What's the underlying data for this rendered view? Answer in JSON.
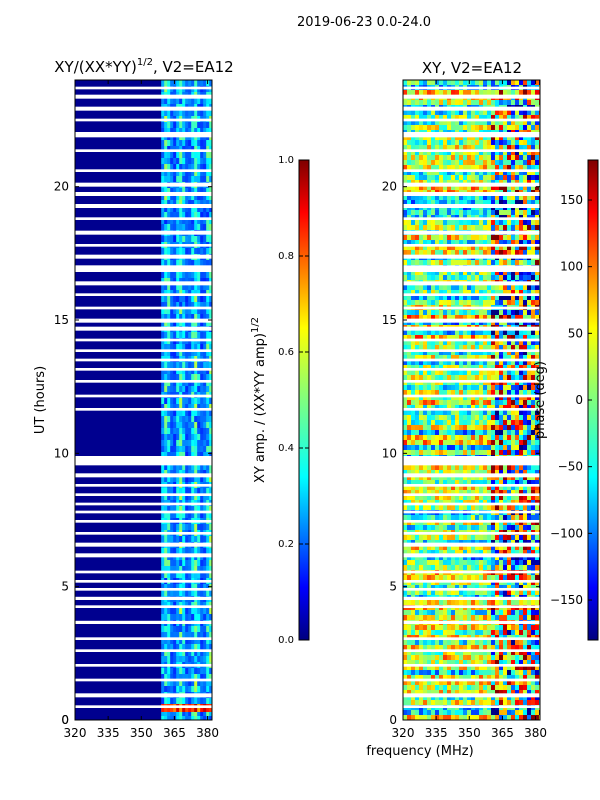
{
  "figure": {
    "suptitle": "2019-06-23 0.0-24.0",
    "shared_xlabel": "frequency (MHz)"
  },
  "colors": {
    "jet_stops": [
      "#00007f",
      "#0000ff",
      "#007fff",
      "#00ffff",
      "#7fff7f",
      "#ffff00",
      "#ff7f00",
      "#ff0000",
      "#7f0000"
    ],
    "gap": "#ffffff"
  },
  "chart_data": [
    {
      "type": "heatmap",
      "id": "amp",
      "title_main": "XY/(XX*YY)",
      "title_sup": "1/2",
      "title_tail": ", V2=EA12",
      "xlabel": "",
      "ylabel": "UT (hours)",
      "xlim": [
        320,
        382
      ],
      "ylim": [
        0,
        24
      ],
      "xticks": [
        320,
        335,
        350,
        365,
        380
      ],
      "yticks": [
        0,
        5,
        10,
        15,
        20
      ],
      "colorbar": {
        "label_main": "XY amp. / (XX*YY amp)",
        "label_sup": "1/2",
        "range": [
          0.0,
          1.0
        ],
        "ticks": [
          "0.0",
          "0.2",
          "0.4",
          "0.6",
          "0.8",
          "1.0"
        ]
      },
      "description": "Mostly low normalized amplitude (~0.05) below 359 MHz; banded amplitude 0.3-0.6 in channels 359-382 MHz; high values near 0.3-0.6 UT",
      "background_value": 0.05,
      "band_start_mhz": 359,
      "hot_rows_ut": [
        0.3,
        0.6
      ]
    },
    {
      "type": "heatmap",
      "id": "phase",
      "title": "XY, V2=EA12",
      "xlabel": "",
      "ylabel": "",
      "xlim": [
        320,
        382
      ],
      "ylim": [
        0,
        24
      ],
      "xticks": [
        320,
        335,
        350,
        365,
        380
      ],
      "yticks": [
        5,
        10,
        15,
        20
      ],
      "colorbar": {
        "label": "phase (deg)",
        "range": [
          -180,
          180
        ],
        "ticks": [
          "150",
          "100",
          "50",
          "0",
          "−50",
          "−100",
          "−150"
        ],
        "tick_values": [
          150,
          100,
          50,
          0,
          -50,
          -100,
          -150
        ]
      },
      "description": "Noisy phase mostly near 0 deg with structured features above 359 MHz",
      "background_value": 0
    }
  ],
  "flagged_rows_ut": [
    [
      0.45,
      0.55
    ],
    [
      0.85,
      1.0
    ],
    [
      1.45,
      1.55
    ],
    [
      2.0,
      2.1
    ],
    [
      2.55,
      2.65
    ],
    [
      3.0,
      3.1
    ],
    [
      3.6,
      3.72
    ],
    [
      4.2,
      4.3
    ],
    [
      4.5,
      4.62
    ],
    [
      4.85,
      4.95
    ],
    [
      5.15,
      5.25
    ],
    [
      5.5,
      5.6
    ],
    [
      6.1,
      6.25
    ],
    [
      6.5,
      6.65
    ],
    [
      6.95,
      7.05
    ],
    [
      7.4,
      7.5
    ],
    [
      7.75,
      7.85
    ],
    [
      8.05,
      8.15
    ],
    [
      8.4,
      8.5
    ],
    [
      8.75,
      8.85
    ],
    [
      9.1,
      9.25
    ],
    [
      9.55,
      9.9
    ],
    [
      11.6,
      11.7
    ],
    [
      12.1,
      12.2
    ],
    [
      12.65,
      12.75
    ],
    [
      13.1,
      13.2
    ],
    [
      13.45,
      13.55
    ],
    [
      13.8,
      13.9
    ],
    [
      14.2,
      14.3
    ],
    [
      14.6,
      14.75
    ],
    [
      14.9,
      15.05
    ],
    [
      15.4,
      15.5
    ],
    [
      15.9,
      16.0
    ],
    [
      16.3,
      16.45
    ],
    [
      16.8,
      17.05
    ],
    [
      17.3,
      17.45
    ],
    [
      17.75,
      17.85
    ],
    [
      18.2,
      18.35
    ],
    [
      18.75,
      18.85
    ],
    [
      19.2,
      19.35
    ],
    [
      19.65,
      19.8
    ],
    [
      20.0,
      20.15
    ],
    [
      20.55,
      20.65
    ],
    [
      21.3,
      21.4
    ],
    [
      21.85,
      22.05
    ],
    [
      22.45,
      22.55
    ],
    [
      22.85,
      23.0
    ],
    [
      23.3,
      23.45
    ],
    [
      23.65,
      23.75
    ]
  ]
}
